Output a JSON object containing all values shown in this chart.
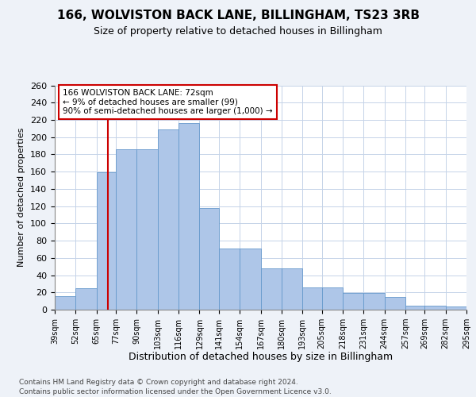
{
  "title1": "166, WOLVISTON BACK LANE, BILLINGHAM, TS23 3RB",
  "title2": "Size of property relative to detached houses in Billingham",
  "xlabel": "Distribution of detached houses by size in Billingham",
  "ylabel": "Number of detached properties",
  "categories": [
    "39sqm",
    "52sqm",
    "65sqm",
    "77sqm",
    "90sqm",
    "103sqm",
    "116sqm",
    "129sqm",
    "141sqm",
    "154sqm",
    "167sqm",
    "180sqm",
    "193sqm",
    "205sqm",
    "218sqm",
    "231sqm",
    "244sqm",
    "257sqm",
    "269sqm",
    "282sqm",
    "295sqm"
  ],
  "bin_starts": [
    39,
    52,
    65,
    77,
    90,
    103,
    116,
    129,
    141,
    154,
    167,
    180,
    193,
    205,
    218,
    231,
    244,
    257,
    269,
    282
  ],
  "bin_ends": [
    52,
    65,
    77,
    90,
    103,
    116,
    129,
    141,
    154,
    167,
    180,
    193,
    205,
    218,
    231,
    244,
    257,
    269,
    282,
    295
  ],
  "bar_heights": [
    16,
    25,
    159,
    186,
    186,
    209,
    216,
    118,
    71,
    71,
    48,
    48,
    26,
    26,
    19,
    19,
    15,
    5,
    5,
    4
  ],
  "bar_color": "#aec6e8",
  "bar_edge_color": "#6699cc",
  "annotation_line1": "166 WOLVISTON BACK LANE: 72sqm",
  "annotation_line2": "← 9% of detached houses are smaller (99)",
  "annotation_line3": "90% of semi-detached houses are larger (1,000) →",
  "annotation_box_facecolor": "#ffffff",
  "annotation_box_edgecolor": "#cc0000",
  "red_line_x": 72,
  "red_line_color": "#cc0000",
  "ylim": [
    0,
    260
  ],
  "yticks": [
    0,
    20,
    40,
    60,
    80,
    100,
    120,
    140,
    160,
    180,
    200,
    220,
    240,
    260
  ],
  "xlim_min": 39,
  "xlim_max": 295,
  "footer1": "Contains HM Land Registry data © Crown copyright and database right 2024.",
  "footer2": "Contains public sector information licensed under the Open Government Licence v3.0.",
  "bg_color": "#eef2f8",
  "plot_bg_color": "#ffffff",
  "grid_color": "#c5d3e8"
}
